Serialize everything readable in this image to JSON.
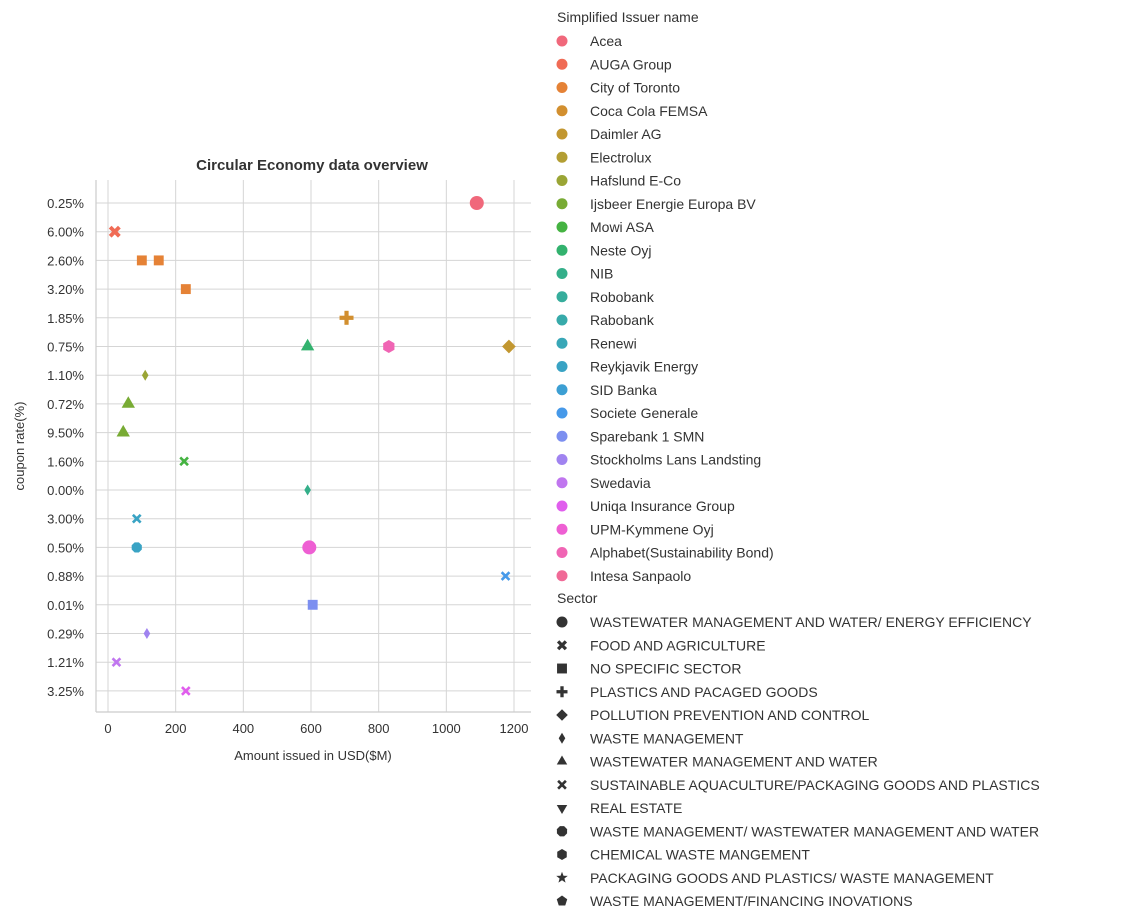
{
  "chart_data": {
    "type": "scatter",
    "title": "Circular Economy data overview",
    "xlabel": "Amount issued in USD($M)",
    "ylabel": "coupon rate(%)",
    "xlim": [
      -30,
      1230
    ],
    "x_ticks": [
      0,
      200,
      400,
      600,
      800,
      1000,
      1200
    ],
    "y_categories": [
      "0.25%",
      "6.00%",
      "2.60%",
      "3.20%",
      "1.85%",
      "0.75%",
      "1.10%",
      "0.72%",
      "9.50%",
      "1.60%",
      "0.00%",
      "3.00%",
      "0.50%",
      "0.88%",
      "0.01%",
      "0.29%",
      "1.21%",
      "3.25%"
    ],
    "grid": true,
    "hue_title": "Simplified Issuer name",
    "style_title": "Sector",
    "hue_legend": [
      {
        "name": "Acea",
        "color": "#f0687b"
      },
      {
        "name": "AUGA Group",
        "color": "#f06b55"
      },
      {
        "name": "City of Toronto",
        "color": "#e58236"
      },
      {
        "name": "Coca Cola FEMSA",
        "color": "#d28f2f"
      },
      {
        "name": "Daimler AG",
        "color": "#c29730"
      },
      {
        "name": "Electrolux",
        "color": "#b39e33"
      },
      {
        "name": "Hafslund E-Co",
        "color": "#9aa535"
      },
      {
        "name": "Ijsbeer Energie Europa BV",
        "color": "#78ab34"
      },
      {
        "name": "Mowi ASA",
        "color": "#45b342"
      },
      {
        "name": "Neste Oyj",
        "color": "#32b26e"
      },
      {
        "name": "NIB",
        "color": "#34af8a"
      },
      {
        "name": "Robobank",
        "color": "#36ad9c"
      },
      {
        "name": "Rabobank",
        "color": "#37aaaa"
      },
      {
        "name": "Renewi",
        "color": "#38a7b7"
      },
      {
        "name": "Reykjavik Energy",
        "color": "#39a3c4"
      },
      {
        "name": "SID Banka",
        "color": "#3c9fd3"
      },
      {
        "name": "Societe Generale",
        "color": "#4699e9"
      },
      {
        "name": "Sparebank 1 SMN",
        "color": "#7c8ff0"
      },
      {
        "name": "Stockholms Lans Landsting",
        "color": "#a083f0"
      },
      {
        "name": "Swedavia",
        "color": "#c076ef"
      },
      {
        "name": "Uniqa Insurance Group",
        "color": "#e05eed"
      },
      {
        "name": "UPM-Kymmene Oyj",
        "color": "#ee5fd3"
      },
      {
        "name": "Alphabet(Sustainability Bond)",
        "color": "#f065b4"
      },
      {
        "name": "Intesa Sanpaolo",
        "color": "#f06a97"
      }
    ],
    "style_legend": [
      {
        "name": "WASTEWATER MANAGEMENT AND WATER/ ENERGY EFFICIENCY",
        "marker": "circle"
      },
      {
        "name": "FOOD AND AGRICULTURE",
        "marker": "x"
      },
      {
        "name": "NO SPECIFIC SECTOR",
        "marker": "square"
      },
      {
        "name": "PLASTICS AND PACAGED GOODS",
        "marker": "plus"
      },
      {
        "name": "POLLUTION PREVENTION AND CONTROL",
        "marker": "diamond"
      },
      {
        "name": "WASTE MANAGEMENT",
        "marker": "thin_diamond"
      },
      {
        "name": "WASTEWATER MANAGEMENT AND WATER",
        "marker": "triangle_up"
      },
      {
        "name": "SUSTAINABLE AQUACULTURE/PACKAGING GOODS AND PLASTICS",
        "marker": "tri_cross"
      },
      {
        "name": "REAL ESTATE",
        "marker": "triangle_down"
      },
      {
        "name": "WASTE MANAGEMENT/ WASTEWATER MANAGEMENT AND WATER",
        "marker": "octagon"
      },
      {
        "name": "CHEMICAL WASTE MANGEMENT",
        "marker": "hexagon"
      },
      {
        "name": "PACKAGING GOODS AND PLASTICS/ WASTE MANAGEMENT",
        "marker": "star"
      },
      {
        "name": "WASTE MANAGEMENT/FINANCING INOVATIONS",
        "marker": "pentagon"
      }
    ],
    "points": [
      {
        "x": 1090,
        "y": "0.25%",
        "issuer": "Acea",
        "marker": "circle"
      },
      {
        "x": 20,
        "y": "6.00%",
        "issuer": "AUGA Group",
        "marker": "x"
      },
      {
        "x": 100,
        "y": "2.60%",
        "issuer": "City of Toronto",
        "marker": "square"
      },
      {
        "x": 150,
        "y": "2.60%",
        "issuer": "City of Toronto",
        "marker": "square"
      },
      {
        "x": 230,
        "y": "3.20%",
        "issuer": "City of Toronto",
        "marker": "square"
      },
      {
        "x": 705,
        "y": "1.85%",
        "issuer": "Coca Cola FEMSA",
        "marker": "plus"
      },
      {
        "x": 1185,
        "y": "0.75%",
        "issuer": "Daimler AG",
        "marker": "diamond"
      },
      {
        "x": 110,
        "y": "1.10%",
        "issuer": "Hafslund E-Co",
        "marker": "thin_diamond"
      },
      {
        "x": 60,
        "y": "0.72%",
        "issuer": "Ijsbeer Energie Europa BV",
        "marker": "triangle_up"
      },
      {
        "x": 45,
        "y": "9.50%",
        "issuer": "Ijsbeer Energie Europa BV",
        "marker": "triangle_up"
      },
      {
        "x": 225,
        "y": "1.60%",
        "issuer": "Mowi ASA",
        "marker": "tri_cross"
      },
      {
        "x": 590,
        "y": "0.75%",
        "issuer": "Neste Oyj",
        "marker": "triangle_up"
      },
      {
        "x": 590,
        "y": "0.00%",
        "issuer": "NIB",
        "marker": "thin_diamond"
      },
      {
        "x": 85,
        "y": "3.00%",
        "issuer": "Reykjavik Energy",
        "marker": "tri_cross"
      },
      {
        "x": 85,
        "y": "0.50%",
        "issuer": "Reykjavik Energy",
        "marker": "octagon"
      },
      {
        "x": 1175,
        "y": "0.88%",
        "issuer": "Societe Generale",
        "marker": "tri_cross"
      },
      {
        "x": 605,
        "y": "0.01%",
        "issuer": "Sparebank 1 SMN",
        "marker": "square"
      },
      {
        "x": 115,
        "y": "0.29%",
        "issuer": "Stockholms Lans Landsting",
        "marker": "thin_diamond"
      },
      {
        "x": 25,
        "y": "1.21%",
        "issuer": "Swedavia",
        "marker": "tri_cross"
      },
      {
        "x": 230,
        "y": "3.25%",
        "issuer": "Uniqa Insurance Group",
        "marker": "tri_cross"
      },
      {
        "x": 595,
        "y": "0.50%",
        "issuer": "UPM-Kymmene Oyj",
        "marker": "circle"
      },
      {
        "x": 830,
        "y": "0.75%",
        "issuer": "Alphabet(Sustainability Bond)",
        "marker": "hexagon"
      }
    ]
  }
}
